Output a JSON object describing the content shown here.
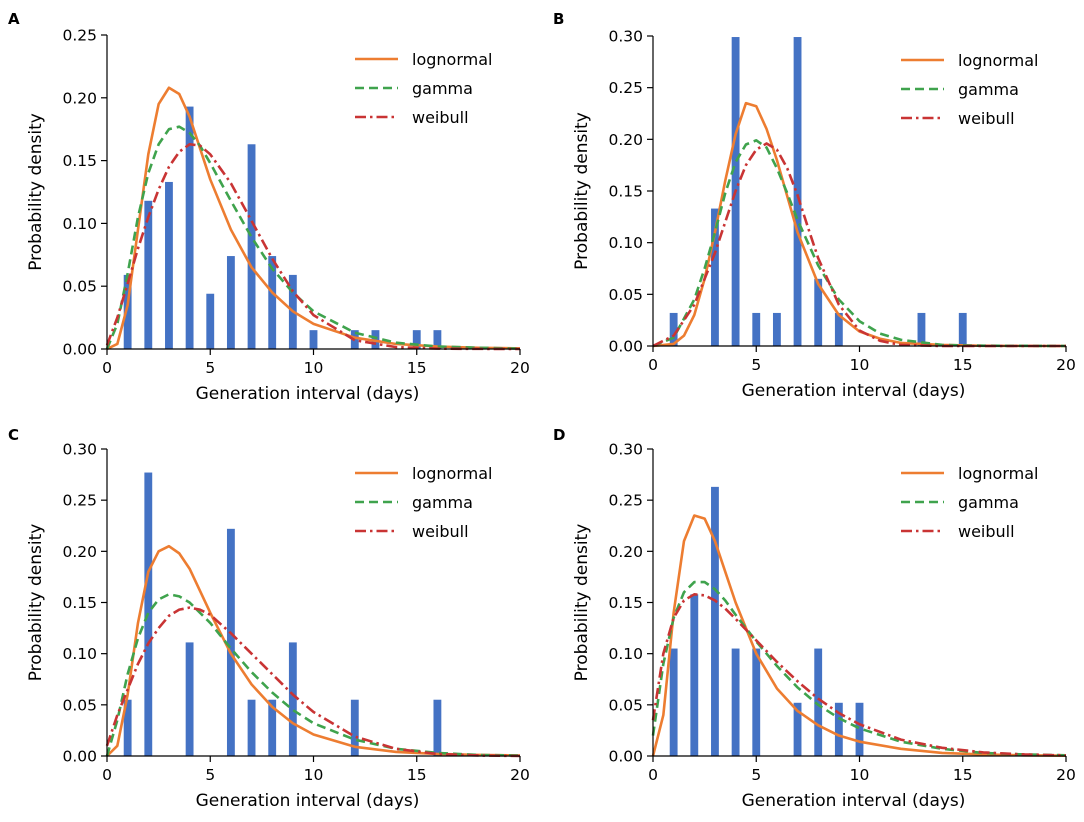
{
  "colors": {
    "bar": "#4472c4",
    "lognormal": "#ed7d31",
    "gamma": "#3fa34d",
    "weibull": "#c93434",
    "axis": "#000000"
  },
  "chart_data": [
    {
      "panel_label": "A",
      "type": "bar+line",
      "xlabel": "Generation interval (days)",
      "ylabel": "Probability density",
      "xlim": [
        0,
        20
      ],
      "ylim": [
        0,
        0.25
      ],
      "xticks": [
        0,
        5,
        10,
        15,
        20
      ],
      "xtick_labels": [
        "0",
        "5",
        "10",
        "15",
        "20"
      ],
      "yticks": [
        0,
        0.05,
        0.1,
        0.15,
        0.2,
        0.25
      ],
      "ytick_labels": [
        "0.00",
        "0.05",
        "0.10",
        "0.15",
        "0.20",
        "0.25"
      ],
      "bars": {
        "x": [
          1,
          2,
          3,
          4,
          5,
          6,
          7,
          8,
          9,
          10,
          12,
          13,
          15,
          16
        ],
        "values": [
          0.059,
          0.118,
          0.133,
          0.193,
          0.044,
          0.074,
          0.163,
          0.074,
          0.059,
          0.015,
          0.015,
          0.015,
          0.015,
          0.015
        ]
      },
      "curves": [
        {
          "name": "lognormal",
          "x": [
            0,
            0.5,
            1,
            1.5,
            2,
            2.5,
            3,
            3.5,
            4,
            4.5,
            5,
            6,
            7,
            8,
            9,
            10,
            12,
            14,
            16,
            18,
            20
          ],
          "values": [
            0,
            0.004,
            0.035,
            0.095,
            0.155,
            0.195,
            0.208,
            0.203,
            0.185,
            0.16,
            0.135,
            0.095,
            0.065,
            0.045,
            0.03,
            0.02,
            0.009,
            0.004,
            0.002,
            0.001,
            0.0005
          ]
        },
        {
          "name": "gamma",
          "x": [
            0,
            0.5,
            1,
            1.5,
            2,
            2.5,
            3,
            3.5,
            4,
            4.5,
            5,
            6,
            7,
            8,
            9,
            10,
            12,
            14,
            16,
            18,
            20
          ],
          "values": [
            0,
            0.02,
            0.06,
            0.105,
            0.14,
            0.163,
            0.175,
            0.177,
            0.172,
            0.162,
            0.148,
            0.118,
            0.089,
            0.064,
            0.045,
            0.03,
            0.013,
            0.005,
            0.002,
            0.001,
            0.0003
          ]
        },
        {
          "name": "weibull",
          "x": [
            0,
            0.5,
            1,
            1.5,
            2,
            2.5,
            3,
            3.5,
            4,
            4.5,
            5,
            6,
            7,
            8,
            9,
            10,
            12,
            14,
            16,
            18,
            20
          ],
          "values": [
            0.003,
            0.025,
            0.052,
            0.08,
            0.105,
            0.127,
            0.145,
            0.157,
            0.163,
            0.162,
            0.155,
            0.132,
            0.102,
            0.072,
            0.046,
            0.027,
            0.007,
            0.0015,
            0.0003,
            0.0001,
            0
          ]
        }
      ],
      "legend": {
        "position": "top-right",
        "entries": [
          "lognormal",
          "gamma",
          "weibull"
        ]
      }
    },
    {
      "panel_label": "B",
      "type": "bar+line",
      "xlabel": "Generation interval (days)",
      "ylabel": "Probability density",
      "xlim": [
        0,
        20
      ],
      "ylim": [
        0,
        0.3
      ],
      "xticks": [
        0,
        5,
        10,
        15,
        20
      ],
      "xtick_labels": [
        "0",
        "5",
        "10",
        "15",
        "20"
      ],
      "yticks": [
        0,
        0.05,
        0.1,
        0.15,
        0.2,
        0.25,
        0.3
      ],
      "ytick_labels": [
        "0.00",
        "0.05",
        "0.10",
        "0.15",
        "0.20",
        "0.25",
        "0.30"
      ],
      "bars": {
        "x": [
          1,
          3,
          4,
          5,
          6,
          7,
          8,
          9,
          13,
          15
        ],
        "values": [
          0.032,
          0.133,
          0.299,
          0.032,
          0.032,
          0.299,
          0.065,
          0.032,
          0.032,
          0.032
        ]
      },
      "curves": [
        {
          "name": "lognormal",
          "x": [
            0,
            1,
            1.5,
            2,
            2.5,
            3,
            3.5,
            4,
            4.5,
            5,
            5.5,
            6,
            6.5,
            7,
            8,
            9,
            10,
            11,
            12,
            14,
            16,
            20
          ],
          "values": [
            0,
            0.002,
            0.01,
            0.03,
            0.065,
            0.11,
            0.16,
            0.205,
            0.235,
            0.232,
            0.21,
            0.18,
            0.145,
            0.11,
            0.06,
            0.03,
            0.014,
            0.007,
            0.003,
            0.001,
            0.0002,
            0
          ]
        },
        {
          "name": "gamma",
          "x": [
            0,
            1,
            2,
            2.5,
            3,
            3.5,
            4,
            4.5,
            5,
            5.5,
            6,
            6.5,
            7,
            8,
            9,
            10,
            11,
            12,
            14,
            16,
            20
          ],
          "values": [
            0,
            0.008,
            0.045,
            0.075,
            0.11,
            0.148,
            0.178,
            0.195,
            0.199,
            0.192,
            0.172,
            0.148,
            0.122,
            0.078,
            0.045,
            0.024,
            0.012,
            0.006,
            0.001,
            0.0003,
            0
          ]
        },
        {
          "name": "weibull",
          "x": [
            0,
            1,
            2,
            3,
            3.5,
            4,
            4.5,
            5,
            5.5,
            6,
            6.5,
            7,
            7.5,
            8,
            9,
            10,
            11,
            12,
            14,
            20
          ],
          "values": [
            0,
            0.01,
            0.04,
            0.09,
            0.12,
            0.15,
            0.175,
            0.19,
            0.196,
            0.19,
            0.172,
            0.146,
            0.115,
            0.085,
            0.04,
            0.015,
            0.005,
            0.001,
            0,
            0
          ]
        }
      ],
      "legend": {
        "position": "top-right",
        "entries": [
          "lognormal",
          "gamma",
          "weibull"
        ]
      }
    },
    {
      "panel_label": "C",
      "type": "bar+line",
      "xlabel": "Generation interval (days)",
      "ylabel": "Probability density",
      "xlim": [
        0,
        20
      ],
      "ylim": [
        0,
        0.3
      ],
      "xticks": [
        0,
        5,
        10,
        15,
        20
      ],
      "xtick_labels": [
        "0",
        "5",
        "10",
        "15",
        "20"
      ],
      "yticks": [
        0,
        0.05,
        0.1,
        0.15,
        0.2,
        0.25,
        0.3
      ],
      "ytick_labels": [
        "0.00",
        "0.05",
        "0.10",
        "0.15",
        "0.20",
        "0.25",
        "0.30"
      ],
      "bars": {
        "x": [
          1,
          2,
          4,
          6,
          7,
          8,
          9,
          12,
          16
        ],
        "values": [
          0.055,
          0.277,
          0.111,
          0.222,
          0.055,
          0.055,
          0.111,
          0.055,
          0.055
        ]
      },
      "curves": [
        {
          "name": "lognormal",
          "x": [
            0,
            0.5,
            1,
            1.5,
            2,
            2.5,
            3,
            3.5,
            4,
            5,
            6,
            7,
            8,
            9,
            10,
            12,
            14,
            16,
            18,
            20
          ],
          "values": [
            0,
            0.01,
            0.06,
            0.13,
            0.18,
            0.2,
            0.205,
            0.198,
            0.183,
            0.14,
            0.1,
            0.07,
            0.048,
            0.032,
            0.021,
            0.009,
            0.004,
            0.002,
            0.001,
            0.0005
          ]
        },
        {
          "name": "gamma",
          "x": [
            0,
            0.5,
            1,
            1.5,
            2,
            2.5,
            3,
            3.5,
            4,
            5,
            6,
            7,
            8,
            9,
            10,
            12,
            14,
            16,
            18,
            20
          ],
          "values": [
            0,
            0.035,
            0.08,
            0.115,
            0.14,
            0.153,
            0.158,
            0.156,
            0.15,
            0.13,
            0.105,
            0.082,
            0.062,
            0.045,
            0.032,
            0.016,
            0.007,
            0.003,
            0.001,
            0.0005
          ]
        },
        {
          "name": "weibull",
          "x": [
            0,
            0.5,
            1,
            1.5,
            2,
            2.5,
            3,
            3.5,
            4,
            4.5,
            5,
            6,
            7,
            8,
            9,
            10,
            12,
            14,
            16,
            18,
            20
          ],
          "values": [
            0.01,
            0.04,
            0.065,
            0.09,
            0.11,
            0.125,
            0.137,
            0.143,
            0.145,
            0.143,
            0.138,
            0.12,
            0.1,
            0.08,
            0.06,
            0.043,
            0.019,
            0.007,
            0.002,
            0.0005,
            0
          ]
        }
      ],
      "legend": {
        "position": "top-right",
        "entries": [
          "lognormal",
          "gamma",
          "weibull"
        ]
      }
    },
    {
      "panel_label": "D",
      "type": "bar+line",
      "xlabel": "Generation interval (days)",
      "ylabel": "Probability density",
      "xlim": [
        0,
        20
      ],
      "ylim": [
        0,
        0.3
      ],
      "xticks": [
        0,
        5,
        10,
        15,
        20
      ],
      "xtick_labels": [
        "0",
        "5",
        "10",
        "15",
        "20"
      ],
      "yticks": [
        0,
        0.05,
        0.1,
        0.15,
        0.2,
        0.25,
        0.3
      ],
      "ytick_labels": [
        "0.00",
        "0.05",
        "0.10",
        "0.15",
        "0.20",
        "0.25",
        "0.30"
      ],
      "bars": {
        "x": [
          1,
          2,
          3,
          4,
          5,
          7,
          8,
          9,
          10
        ],
        "values": [
          0.105,
          0.158,
          0.263,
          0.105,
          0.105,
          0.052,
          0.105,
          0.052,
          0.052
        ]
      },
      "curves": [
        {
          "name": "lognormal",
          "x": [
            0,
            0.5,
            1,
            1.5,
            2,
            2.5,
            3,
            3.5,
            4,
            5,
            6,
            7,
            8,
            9,
            10,
            12,
            14,
            16,
            18,
            20
          ],
          "values": [
            0,
            0.04,
            0.14,
            0.21,
            0.235,
            0.232,
            0.21,
            0.18,
            0.15,
            0.1,
            0.066,
            0.044,
            0.03,
            0.02,
            0.014,
            0.007,
            0.003,
            0.0015,
            0.0007,
            0.0003
          ]
        },
        {
          "name": "gamma",
          "x": [
            0,
            0.5,
            1,
            1.5,
            2,
            2.5,
            3,
            3.5,
            4,
            5,
            6,
            7,
            8,
            9,
            10,
            12,
            14,
            16,
            18,
            20
          ],
          "values": [
            0.02,
            0.09,
            0.135,
            0.16,
            0.17,
            0.17,
            0.163,
            0.152,
            0.138,
            0.112,
            0.088,
            0.067,
            0.05,
            0.037,
            0.027,
            0.014,
            0.007,
            0.003,
            0.0015,
            0.0007
          ]
        },
        {
          "name": "weibull",
          "x": [
            0,
            0.5,
            1,
            1.5,
            2,
            2.5,
            3,
            3.5,
            4,
            5,
            6,
            7,
            8,
            9,
            10,
            12,
            14,
            16,
            18,
            20
          ],
          "values": [
            0.035,
            0.1,
            0.135,
            0.152,
            0.158,
            0.157,
            0.152,
            0.144,
            0.134,
            0.113,
            0.092,
            0.073,
            0.056,
            0.042,
            0.031,
            0.016,
            0.008,
            0.0035,
            0.0015,
            0.0006
          ]
        }
      ],
      "legend": {
        "position": "top-right",
        "entries": [
          "lognormal",
          "gamma",
          "weibull"
        ]
      }
    }
  ]
}
